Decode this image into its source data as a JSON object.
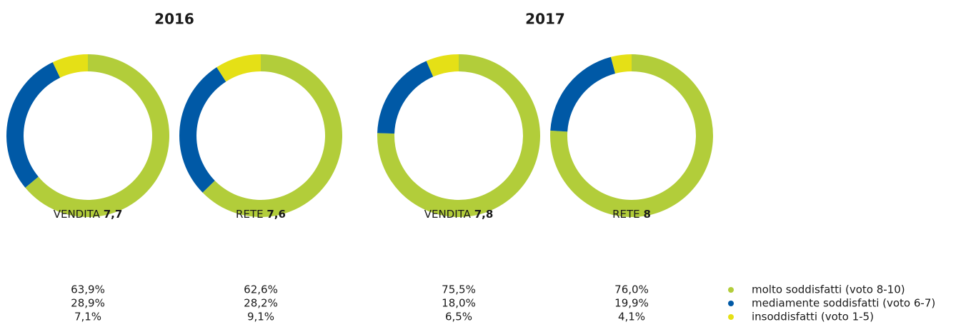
{
  "groups": [
    {
      "title": "2016"
    },
    {
      "title": "2017"
    }
  ],
  "legend": {
    "labels": [
      "molto soddisfatti (voto 8-10)",
      "mediamente soddisfatti (voto 6-7)",
      "insoddisfatti (voto 1-5)"
    ],
    "colors": [
      "#b2cd3a",
      "#0059a6",
      "#e5e016"
    ]
  },
  "chart_data": [
    {
      "type": "pie",
      "donut": true,
      "label": "VENDITA",
      "score": "7,7",
      "values": [
        63.9,
        28.9,
        7.1
      ],
      "value_labels": [
        "63,9%",
        "28,9%",
        "7,1%"
      ]
    },
    {
      "type": "pie",
      "donut": true,
      "label": "RETE",
      "score": "7,6",
      "values": [
        62.6,
        28.2,
        9.1
      ],
      "value_labels": [
        "62,6%",
        "28,2%",
        "9,1%"
      ]
    },
    {
      "type": "pie",
      "donut": true,
      "label": "VENDITA",
      "score": "7,8",
      "values": [
        75.5,
        18.0,
        6.5
      ],
      "value_labels": [
        "75,5%",
        "18,0%",
        "6,5%"
      ]
    },
    {
      "type": "pie",
      "donut": true,
      "label": "RETE",
      "score": "8",
      "values": [
        76.0,
        19.9,
        4.1
      ],
      "value_labels": [
        "76,0%",
        "19,9%",
        "4,1%"
      ]
    }
  ]
}
